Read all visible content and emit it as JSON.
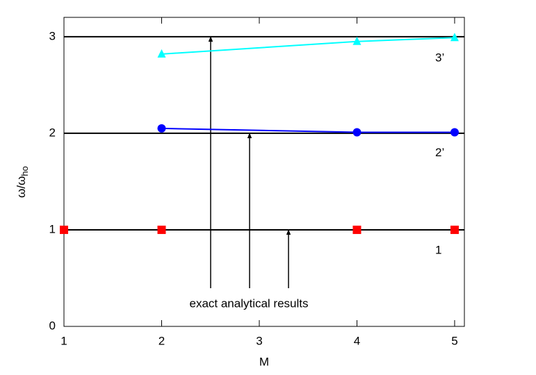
{
  "chart_data": {
    "type": "line",
    "x_label": "M",
    "y_label": "ω/ω",
    "y_label_subscript": "ho",
    "annotation": "exact analytical results",
    "reference_lines": [
      1,
      2,
      3
    ],
    "reference_color": "#000000",
    "xlim": [
      1,
      5.1
    ],
    "ylim": [
      0,
      3.2
    ],
    "xticks": [
      1,
      2,
      3,
      4,
      5
    ],
    "yticks": [
      0,
      1,
      2,
      3
    ],
    "series": [
      {
        "name": "1",
        "color": "#ff0000",
        "marker": "square",
        "line": false,
        "x": [
          1,
          2,
          4,
          5
        ],
        "values": [
          1,
          1,
          1,
          1
        ]
      },
      {
        "name": "2’",
        "color": "#0000ff",
        "marker": "circle",
        "line": true,
        "x": [
          2,
          4,
          5
        ],
        "values": [
          2.05,
          2.01,
          2.01
        ]
      },
      {
        "name": "3’",
        "color": "#00ffff",
        "marker": "triangle",
        "line": true,
        "x": [
          2,
          4,
          5
        ],
        "values": [
          2.82,
          2.95,
          2.99
        ]
      }
    ]
  }
}
